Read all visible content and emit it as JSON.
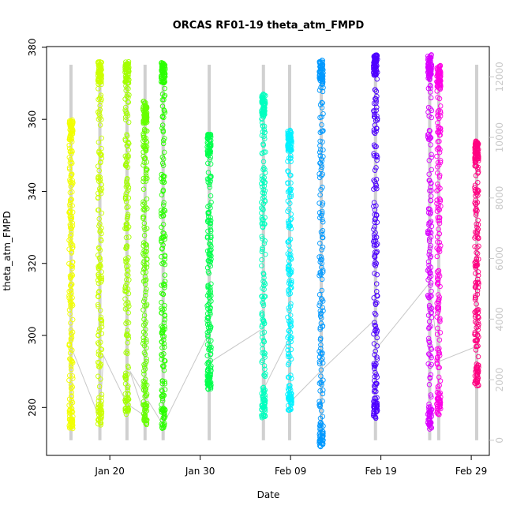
{
  "chart_data": {
    "type": "scatter",
    "title": "ORCAS RF01-19 theta_atm_FMPD",
    "xlabel": "Date",
    "ylabel": "theta_atm_FMPD",
    "x_axis": {
      "type": "date",
      "range": [
        "2016-01-13",
        "2016-03-02"
      ],
      "ticks": [
        {
          "date": "2016-01-20",
          "label": "Jan 20"
        },
        {
          "date": "2016-01-30",
          "label": "Jan 30"
        },
        {
          "date": "2016-02-09",
          "label": "Feb 09"
        },
        {
          "date": "2016-02-19",
          "label": "Feb 19"
        },
        {
          "date": "2016-02-29",
          "label": "Feb 29"
        }
      ]
    },
    "y_axis": {
      "range": [
        266.7,
        380.2
      ],
      "ticks": [
        280,
        300,
        320,
        340,
        360,
        380
      ]
    },
    "y2_axis": {
      "range": [
        -500,
        13000
      ],
      "ticks": [
        0,
        2000,
        4000,
        6000,
        8000,
        10000,
        12000
      ],
      "color": "#c8c8c8"
    },
    "grid": false,
    "legend": "none",
    "flights": [
      {
        "date": "2016-01-15.7",
        "color": "#f2ff00",
        "center": 325,
        "range": [
          274,
          360
        ]
      },
      {
        "date": "2016-01-18.9",
        "color": "#ccff00",
        "center": 320,
        "range": [
          275,
          376
        ]
      },
      {
        "date": "2016-01-21.9",
        "color": "#a3ff00",
        "center": 325,
        "range": [
          278,
          376
        ]
      },
      {
        "date": "2016-01-23.9",
        "color": "#66ff00",
        "center": 325,
        "range": [
          275,
          365
        ]
      },
      {
        "date": "2016-01-25.9",
        "color": "#2bff00",
        "center": 330,
        "range": [
          274,
          376
        ]
      },
      {
        "date": "2016-01-31.0",
        "color": "#00ff4d",
        "center": 315,
        "range": [
          285,
          356
        ]
      },
      {
        "date": "2016-02-06.0",
        "color": "#00ffbf",
        "center": 310,
        "range": [
          277,
          367
        ]
      },
      {
        "date": "2016-02-08.9",
        "color": "#00f2ff",
        "center": 320,
        "range": [
          279,
          357
        ]
      },
      {
        "date": "2016-02-12.4",
        "color": "#0099ff",
        "center": 320,
        "range": [
          269,
          377
        ]
      },
      {
        "date": "2016-02-18.4",
        "color": "#4d00ff",
        "center": 320,
        "range": [
          277,
          378
        ]
      },
      {
        "date": "2016-02-24.4",
        "color": "#d900ff",
        "center": 300,
        "range": [
          274,
          378
        ]
      },
      {
        "date": "2016-02-25.4",
        "color": "#ff00e6",
        "center": 300,
        "range": [
          278,
          375
        ]
      },
      {
        "date": "2016-02-29.6",
        "color": "#ff0080",
        "center": 320,
        "range": [
          286,
          354
        ]
      }
    ],
    "altitude_series": {
      "color": "#c8c8c8",
      "connections": [
        {
          "x": "2016-01-15.7",
          "y": 3100
        },
        {
          "x": "2016-01-18.9",
          "y": 700
        },
        {
          "x": "2016-01-19.3",
          "y": 2800
        },
        {
          "x": "2016-01-21.9",
          "y": 1200
        },
        {
          "x": "2016-01-23.9",
          "y": 800
        },
        {
          "x": "2016-01-22.2",
          "y": 2300
        },
        {
          "x": "2016-01-25.9",
          "y": 500
        },
        {
          "x": "2016-01-30.9",
          "y": 3500
        },
        {
          "x": "2016-01-31.2",
          "y": 2600
        },
        {
          "x": "2016-02-06.0",
          "y": 3700
        },
        {
          "x": "2016-02-06.2",
          "y": 1800
        },
        {
          "x": "2016-02-08.9",
          "y": 3400
        },
        {
          "x": "2016-02-09.1",
          "y": 1300
        },
        {
          "x": "2016-02-12.4",
          "y": 2300
        },
        {
          "x": "2016-02-18.4",
          "y": 4000
        },
        {
          "x": "2016-02-18.7",
          "y": 3100
        },
        {
          "x": "2016-02-24.4",
          "y": 5200
        },
        {
          "x": "2016-02-25.4",
          "y": 2600
        },
        {
          "x": "2016-02-29.6",
          "y": 3100
        }
      ]
    }
  }
}
